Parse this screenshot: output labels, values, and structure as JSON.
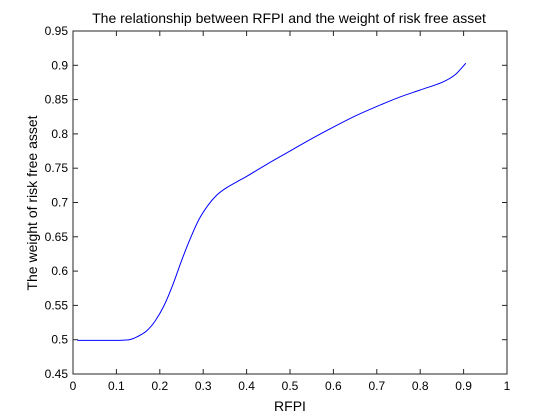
{
  "chart_data": {
    "type": "line",
    "title": "The relationship between RFPI and the weight of risk free asset",
    "xlabel": "RFPI",
    "ylabel": "The weight of risk free asset",
    "xlim": [
      0,
      1
    ],
    "ylim": [
      0.45,
      0.95
    ],
    "grid": false,
    "x_ticks": [
      "0",
      "0.1",
      "0.2",
      "0.3",
      "0.4",
      "0.5",
      "0.6",
      "0.7",
      "0.8",
      "0.9",
      "1"
    ],
    "y_ticks": [
      "0.45",
      "0.5",
      "0.55",
      "0.6",
      "0.65",
      "0.7",
      "0.75",
      "0.8",
      "0.85",
      "0.9",
      "0.95"
    ],
    "series": [
      {
        "color": "#0000ff",
        "x": [
          0.01,
          0.05,
          0.1,
          0.13,
          0.15,
          0.17,
          0.19,
          0.21,
          0.23,
          0.25,
          0.27,
          0.29,
          0.31,
          0.33,
          0.35,
          0.38,
          0.4,
          0.45,
          0.5,
          0.55,
          0.6,
          0.65,
          0.7,
          0.75,
          0.8,
          0.85,
          0.88,
          0.905
        ],
        "y": [
          0.499,
          0.499,
          0.499,
          0.5,
          0.505,
          0.513,
          0.528,
          0.55,
          0.58,
          0.615,
          0.647,
          0.675,
          0.695,
          0.71,
          0.72,
          0.731,
          0.738,
          0.757,
          0.775,
          0.793,
          0.81,
          0.826,
          0.84,
          0.853,
          0.864,
          0.875,
          0.886,
          0.903
        ]
      }
    ]
  }
}
